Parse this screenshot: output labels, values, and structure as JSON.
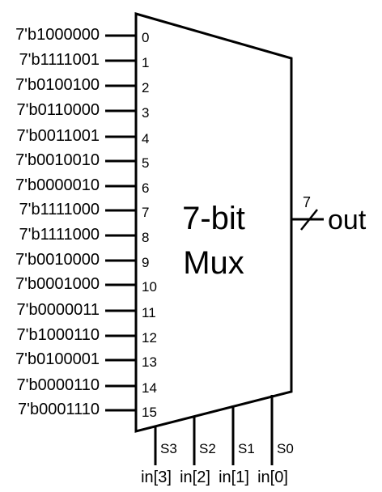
{
  "mux": {
    "title_line1": "7-bit",
    "title_line2": "Mux"
  },
  "inputs": [
    {
      "value": "7'b1000000",
      "index": "0"
    },
    {
      "value": "7'b1111001",
      "index": "1"
    },
    {
      "value": "7'b0100100",
      "index": "2"
    },
    {
      "value": "7'b0110000",
      "index": "3"
    },
    {
      "value": "7'b0011001",
      "index": "4"
    },
    {
      "value": "7'b0010010",
      "index": "5"
    },
    {
      "value": "7'b0000010",
      "index": "6"
    },
    {
      "value": "7'b1111000",
      "index": "7"
    },
    {
      "value": "7'b1111000",
      "index": "8"
    },
    {
      "value": "7'b0010000",
      "index": "9"
    },
    {
      "value": "7'b0001000",
      "index": "10"
    },
    {
      "value": "7'b0000011",
      "index": "11"
    },
    {
      "value": "7'b1000110",
      "index": "12"
    },
    {
      "value": "7'b0100001",
      "index": "13"
    },
    {
      "value": "7'b0000110",
      "index": "14"
    },
    {
      "value": "7'b0001110",
      "index": "15"
    }
  ],
  "selects": [
    {
      "pin": "S3",
      "signal": "in[3]"
    },
    {
      "pin": "S2",
      "signal": "in[2]"
    },
    {
      "pin": "S1",
      "signal": "in[1]"
    },
    {
      "pin": "S0",
      "signal": "in[0]"
    }
  ],
  "output": {
    "label": "out",
    "bus_width": "7"
  }
}
